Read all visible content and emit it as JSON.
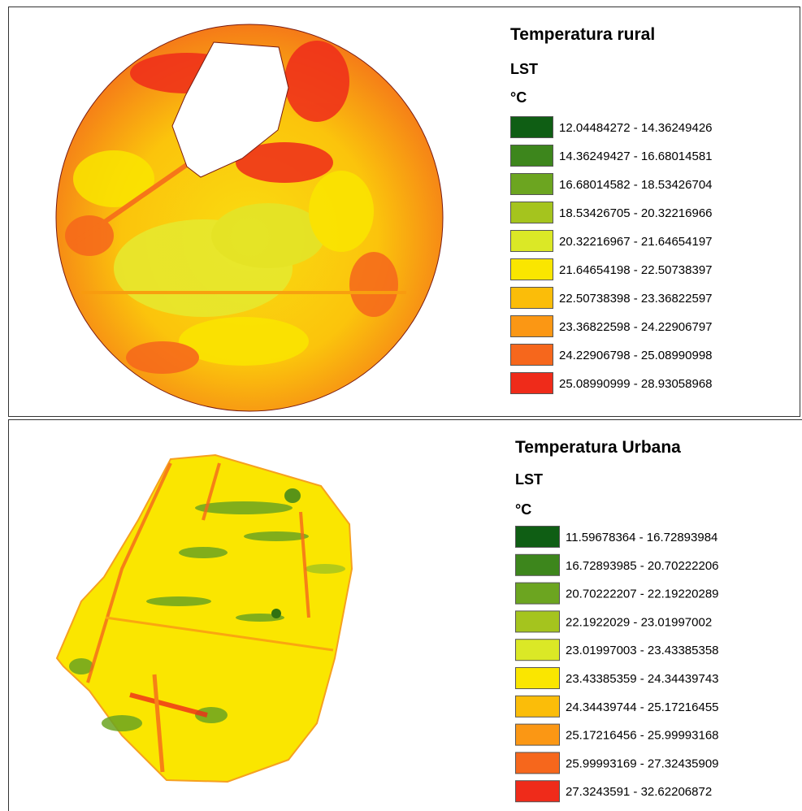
{
  "panels": [
    {
      "title": "Temperatura rural",
      "field": "LST",
      "unit": "°C",
      "classes": [
        {
          "label": "12.04484272 - 14.36249426",
          "color": "#0f5e14"
        },
        {
          "label": "14.36249427 - 16.68014581",
          "color": "#3d861c"
        },
        {
          "label": "16.68014582 - 18.53426704",
          "color": "#6ca520"
        },
        {
          "label": "18.53426705 - 20.32216966",
          "color": "#a5c41e"
        },
        {
          "label": "20.32216967 - 21.64654197",
          "color": "#dbe826"
        },
        {
          "label": "21.64654198 - 22.50738397",
          "color": "#fae600"
        },
        {
          "label": "22.50738398 - 23.36822597",
          "color": "#fbbd09"
        },
        {
          "label": "23.36822598 - 24.22906797",
          "color": "#fb9714"
        },
        {
          "label": "24.22906798 - 25.08990998",
          "color": "#f6671c"
        },
        {
          "label": "25.08990999 - 28.93058968",
          "color": "#ef2b1a"
        }
      ]
    },
    {
      "title": "Temperatura Urbana",
      "field": "LST",
      "unit": "°C",
      "classes": [
        {
          "label": "11.59678364 - 16.72893984",
          "color": "#0f5e14"
        },
        {
          "label": "16.72893985 - 20.70222206",
          "color": "#3d861c"
        },
        {
          "label": "20.70222207 - 22.19220289",
          "color": "#6ca520"
        },
        {
          "label": "22.1922029 - 23.01997002",
          "color": "#a5c41e"
        },
        {
          "label": "23.01997003 - 23.43385358",
          "color": "#dbe826"
        },
        {
          "label": "23.43385359 - 24.34439743",
          "color": "#fae600"
        },
        {
          "label": "24.34439744 - 25.17216455",
          "color": "#fbbd09"
        },
        {
          "label": "25.17216456 - 25.99993168",
          "color": "#fb9714"
        },
        {
          "label": "25.99993169 - 27.32435909",
          "color": "#f6671c"
        },
        {
          "label": "27.3243591 - 32.62206872",
          "color": "#ef2b1a"
        }
      ]
    }
  ]
}
